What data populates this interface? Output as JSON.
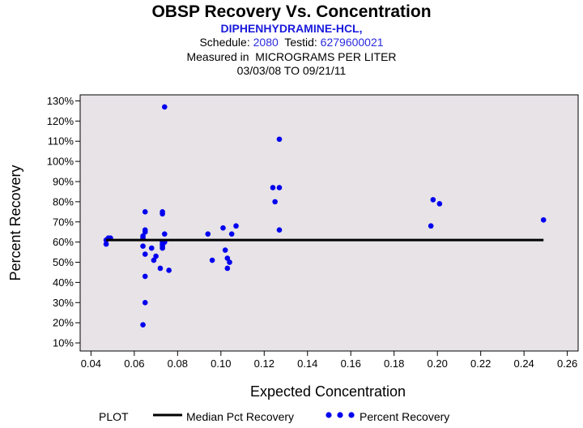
{
  "header": {
    "title": "OBSP Recovery Vs. Concentration",
    "compound": "DIPHENHYDRAMINE-HCL,",
    "schedule_label": "Schedule:",
    "schedule_value": "2080",
    "testid_label": "Testid:",
    "testid_value": "6279600021",
    "measured_line": "Measured in  MICROGRAMS PER LITER",
    "date_range": "03/03/08 TO 09/21/11"
  },
  "legend": {
    "plot_label": "PLOT",
    "median_label": "Median Pct Recovery",
    "recovery_label": "Percent Recovery"
  },
  "colors": {
    "plot_background": "#e7e3e7",
    "point": "#0000ee",
    "median_line": "#000000",
    "header_blue": "#2a2ae0"
  },
  "chart_data": {
    "type": "scatter",
    "title": "OBSP Recovery Vs. Concentration",
    "xlabel": "Expected Concentration",
    "ylabel": "Percent Recovery",
    "xlim": [
      0.035,
      0.265
    ],
    "ylim": [
      6,
      133
    ],
    "x_ticks": [
      0.04,
      0.06,
      0.08,
      0.1,
      0.12,
      0.14,
      0.16,
      0.18,
      0.2,
      0.22,
      0.24,
      0.26
    ],
    "x_tick_labels": [
      "0.04",
      "0.06",
      "0.08",
      "0.10",
      "0.12",
      "0.14",
      "0.16",
      "0.18",
      "0.20",
      "0.22",
      "0.24",
      "0.26"
    ],
    "y_ticks": [
      10,
      20,
      30,
      40,
      50,
      60,
      70,
      80,
      90,
      100,
      110,
      120,
      130
    ],
    "y_tick_labels": [
      "10%",
      "20%",
      "30%",
      "40%",
      "50%",
      "60%",
      "70%",
      "80%",
      "90%",
      "100%",
      "110%",
      "120%",
      "130%"
    ],
    "grid": false,
    "median_line": {
      "name": "Median Pct Recovery",
      "x": [
        0.047,
        0.249
      ],
      "y": 61
    },
    "series": [
      {
        "name": "Percent Recovery",
        "points": [
          [
            0.047,
            59
          ],
          [
            0.047,
            61
          ],
          [
            0.048,
            62
          ],
          [
            0.049,
            62
          ],
          [
            0.064,
            19
          ],
          [
            0.064,
            58
          ],
          [
            0.064,
            62
          ],
          [
            0.064,
            63
          ],
          [
            0.065,
            30
          ],
          [
            0.065,
            54
          ],
          [
            0.065,
            65
          ],
          [
            0.065,
            66
          ],
          [
            0.065,
            75
          ],
          [
            0.065,
            43
          ],
          [
            0.068,
            57
          ],
          [
            0.069,
            51
          ],
          [
            0.07,
            53
          ],
          [
            0.072,
            47
          ],
          [
            0.073,
            57
          ],
          [
            0.073,
            58
          ],
          [
            0.073,
            59
          ],
          [
            0.073,
            60
          ],
          [
            0.073,
            74
          ],
          [
            0.073,
            75
          ],
          [
            0.074,
            127
          ],
          [
            0.074,
            60
          ],
          [
            0.074,
            64
          ],
          [
            0.076,
            46
          ],
          [
            0.094,
            64
          ],
          [
            0.096,
            51
          ],
          [
            0.101,
            67
          ],
          [
            0.102,
            56
          ],
          [
            0.103,
            47
          ],
          [
            0.103,
            52
          ],
          [
            0.104,
            50
          ],
          [
            0.105,
            64
          ],
          [
            0.107,
            68
          ],
          [
            0.124,
            87
          ],
          [
            0.125,
            80
          ],
          [
            0.127,
            111
          ],
          [
            0.127,
            87
          ],
          [
            0.127,
            66
          ],
          [
            0.197,
            68
          ],
          [
            0.198,
            81
          ],
          [
            0.201,
            79
          ],
          [
            0.249,
            71
          ]
        ]
      }
    ]
  }
}
